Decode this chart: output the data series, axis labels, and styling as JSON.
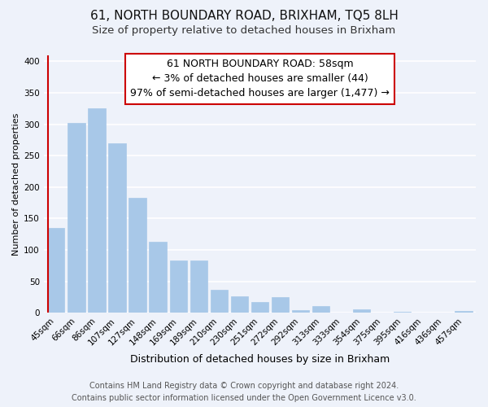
{
  "title": "61, NORTH BOUNDARY ROAD, BRIXHAM, TQ5 8LH",
  "subtitle": "Size of property relative to detached houses in Brixham",
  "xlabel": "Distribution of detached houses by size in Brixham",
  "ylabel": "Number of detached properties",
  "categories": [
    "45sqm",
    "66sqm",
    "86sqm",
    "107sqm",
    "127sqm",
    "148sqm",
    "169sqm",
    "189sqm",
    "210sqm",
    "230sqm",
    "251sqm",
    "272sqm",
    "292sqm",
    "313sqm",
    "333sqm",
    "354sqm",
    "375sqm",
    "395sqm",
    "416sqm",
    "436sqm",
    "457sqm"
  ],
  "values": [
    135,
    302,
    325,
    270,
    183,
    113,
    84,
    84,
    37,
    27,
    18,
    25,
    5,
    11,
    0,
    6,
    0,
    2,
    0,
    0,
    3
  ],
  "bar_color": "#a8c8e8",
  "highlight_line_color": "#cc0000",
  "annotation_line1": "61 NORTH BOUNDARY ROAD: 58sqm",
  "annotation_line2": "← 3% of detached houses are smaller (44)",
  "annotation_line3": "97% of semi-detached houses are larger (1,477) →",
  "ylim": [
    0,
    410
  ],
  "yticks": [
    0,
    50,
    100,
    150,
    200,
    250,
    300,
    350,
    400
  ],
  "footer_line1": "Contains HM Land Registry data © Crown copyright and database right 2024.",
  "footer_line2": "Contains public sector information licensed under the Open Government Licence v3.0.",
  "background_color": "#eef2fa",
  "grid_color": "#ffffff",
  "title_fontsize": 11,
  "subtitle_fontsize": 9.5,
  "xlabel_fontsize": 9,
  "ylabel_fontsize": 8,
  "tick_fontsize": 7.5,
  "annotation_fontsize": 9,
  "footer_fontsize": 7
}
